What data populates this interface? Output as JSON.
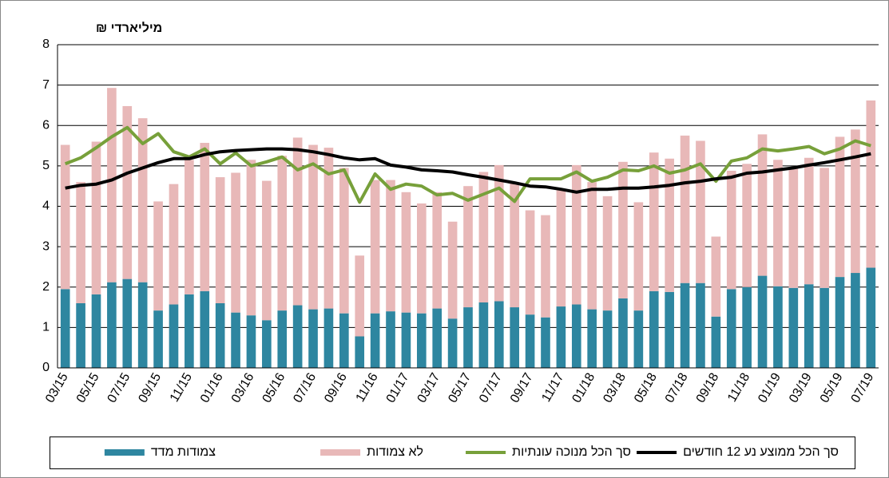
{
  "chart_data": {
    "type": "bar",
    "stacked": true,
    "y_label": "מיליארדי ₪",
    "categories": [
      "03/15",
      null,
      "05/15",
      null,
      "07/15",
      null,
      "09/15",
      null,
      "11/15",
      null,
      "01/16",
      null,
      "03/16",
      null,
      "05/16",
      null,
      "07/16",
      null,
      "09/16",
      null,
      "11/16",
      null,
      "01/17",
      null,
      "03/17",
      null,
      "05/17",
      null,
      "07/17",
      null,
      "09/17",
      null,
      "11/17",
      null,
      "01/18",
      null,
      "03/18",
      null,
      "05/18",
      null,
      "07/18",
      null,
      "09/18",
      null,
      "11/18",
      null,
      "01/19",
      null,
      "03/19",
      null,
      "05/19",
      null,
      "07/19"
    ],
    "series": [
      {
        "name": "צמודות מדד",
        "type": "bar",
        "color": "#2e86a0",
        "values": [
          1.95,
          1.6,
          1.82,
          2.12,
          2.2,
          2.12,
          1.42,
          1.57,
          1.82,
          1.9,
          1.6,
          1.37,
          1.3,
          1.18,
          1.42,
          1.55,
          1.45,
          1.47,
          1.35,
          0.78,
          1.35,
          1.4,
          1.37,
          1.35,
          1.47,
          1.22,
          1.5,
          1.62,
          1.65,
          1.5,
          1.32,
          1.25,
          1.52,
          1.57,
          1.45,
          1.42,
          1.72,
          1.42,
          1.9,
          1.88,
          2.1,
          2.1,
          1.27,
          1.95,
          2.0,
          2.28,
          2.02,
          1.98,
          2.07,
          1.98,
          2.25,
          2.35,
          2.48
        ]
      },
      {
        "name": "לא צמודות",
        "type": "bar",
        "color": "#e8b8b8",
        "values": [
          3.57,
          3.0,
          3.78,
          4.81,
          4.28,
          4.06,
          2.7,
          2.98,
          3.33,
          3.67,
          3.12,
          3.46,
          3.85,
          3.45,
          3.83,
          4.15,
          4.07,
          3.98,
          3.6,
          2.0,
          3.3,
          3.25,
          2.98,
          2.72,
          2.88,
          2.4,
          3.0,
          3.23,
          3.37,
          3.1,
          2.58,
          2.53,
          2.88,
          3.45,
          3.15,
          2.83,
          3.38,
          2.68,
          3.43,
          3.3,
          3.65,
          3.52,
          1.98,
          2.93,
          3.05,
          3.5,
          3.13,
          2.97,
          3.13,
          2.97,
          3.47,
          3.55,
          4.14
        ]
      },
      {
        "name": "סך הכל מנוכה עונתיות",
        "type": "line",
        "color": "#77a03a",
        "values": [
          5.05,
          5.2,
          5.45,
          5.72,
          5.95,
          5.55,
          5.8,
          5.35,
          5.22,
          5.42,
          5.05,
          5.32,
          5.0,
          5.1,
          5.22,
          4.9,
          5.05,
          4.8,
          4.9,
          4.1,
          4.8,
          4.42,
          4.55,
          4.5,
          4.28,
          4.32,
          4.15,
          4.3,
          4.45,
          4.12,
          4.68,
          4.68,
          4.68,
          4.85,
          4.62,
          4.72,
          4.9,
          4.88,
          5.0,
          4.82,
          4.9,
          5.05,
          4.62,
          5.12,
          5.2,
          5.42,
          5.37,
          5.42,
          5.48,
          5.3,
          5.42,
          5.62,
          5.5
        ]
      },
      {
        "name": "סך הכל ממוצע נע 12 חודשים",
        "type": "line",
        "color": "#000000",
        "values": [
          4.45,
          4.52,
          4.55,
          4.65,
          4.82,
          4.95,
          5.08,
          5.18,
          5.18,
          5.28,
          5.35,
          5.38,
          5.4,
          5.42,
          5.42,
          5.4,
          5.35,
          5.28,
          5.2,
          5.15,
          5.18,
          5.02,
          4.97,
          4.9,
          4.88,
          4.85,
          4.78,
          4.72,
          4.65,
          4.58,
          4.5,
          4.48,
          4.42,
          4.35,
          4.42,
          4.42,
          4.45,
          4.45,
          4.48,
          4.52,
          4.58,
          4.62,
          4.68,
          4.72,
          4.82,
          4.85,
          4.9,
          4.95,
          5.02,
          5.08,
          5.15,
          5.22,
          5.3
        ]
      }
    ],
    "ylim": [
      0,
      8
    ],
    "yticks": [
      0,
      1,
      2,
      3,
      4,
      5,
      6,
      7,
      8
    ],
    "grid": true,
    "legend": "bottom"
  }
}
